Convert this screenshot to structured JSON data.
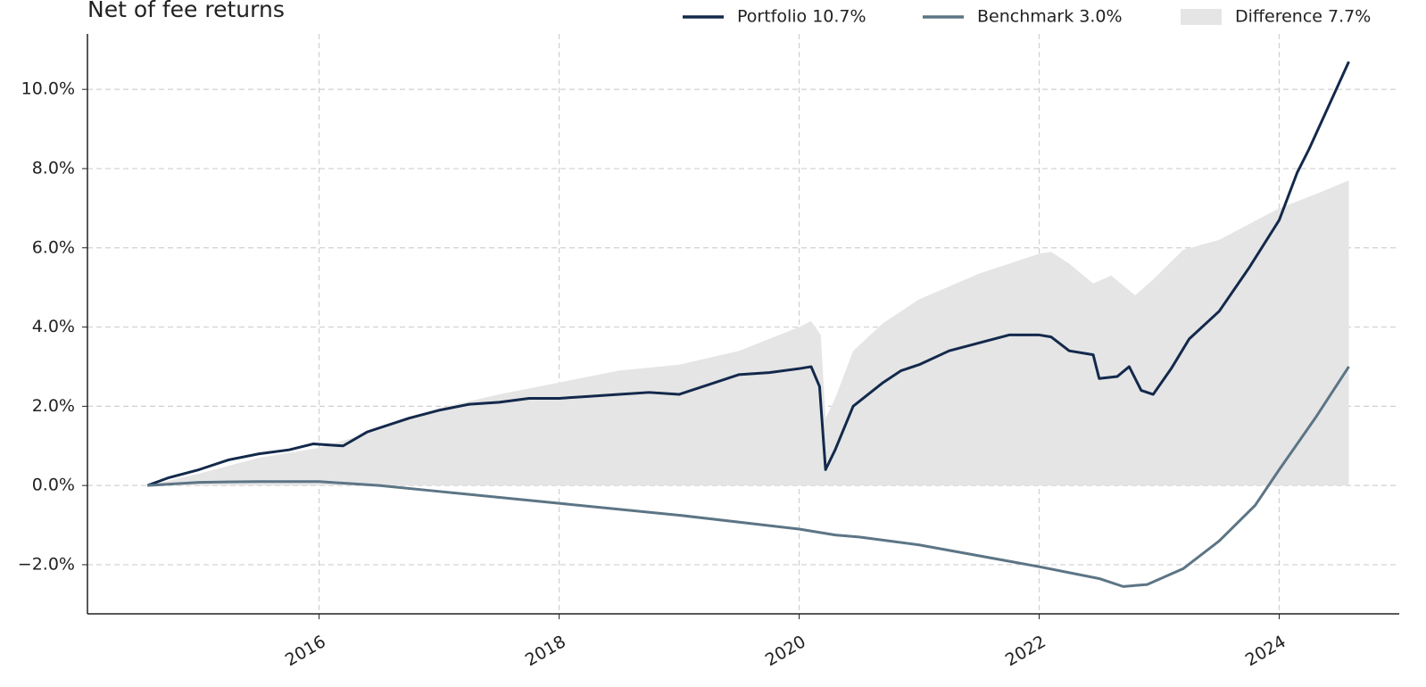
{
  "chart_data": {
    "type": "line",
    "title": "Net of fee returns",
    "xlim": [
      2014.07,
      2025.0
    ],
    "xticks": [
      2016,
      2018,
      2020,
      2022,
      2024
    ],
    "ylim": [
      -3.24,
      11.4
    ],
    "yticks": [
      {
        "value": -2,
        "label": "−2.0%"
      },
      {
        "value": 0,
        "label": "0.0%"
      },
      {
        "value": 2,
        "label": "2.0%"
      },
      {
        "value": 4,
        "label": "4.0%"
      },
      {
        "value": 6,
        "label": "6.0%"
      },
      {
        "value": 8,
        "label": "8.0%"
      },
      {
        "value": 10,
        "label": "10.0%"
      }
    ],
    "grid": true,
    "legend": "top-right",
    "series": [
      {
        "name": "Difference 7.7%",
        "color": "#e5e5e5",
        "style": "area",
        "x": [
          2014.57,
          2015,
          2015.5,
          2016,
          2016.5,
          2017,
          2017.5,
          2018,
          2018.5,
          2019,
          2019.5,
          2020,
          2020.1,
          2020.18,
          2020.22,
          2020.3,
          2020.45,
          2020.7,
          2021,
          2021.5,
          2022,
          2022.1,
          2022.25,
          2022.45,
          2022.6,
          2022.8,
          2022.95,
          2023.2,
          2023.5,
          2024,
          2024.3,
          2024.58
        ],
        "values": [
          0,
          0.3,
          0.7,
          0.95,
          1.4,
          1.95,
          2.3,
          2.6,
          2.9,
          3.05,
          3.4,
          4.0,
          4.15,
          3.8,
          1.7,
          2.2,
          3.4,
          4.1,
          4.7,
          5.35,
          5.85,
          5.9,
          5.6,
          5.1,
          5.3,
          4.8,
          5.2,
          5.95,
          6.2,
          7.0,
          7.35,
          7.7
        ]
      },
      {
        "name": "Portfolio 10.7%",
        "color": "#13294b",
        "style": "line",
        "x": [
          2014.57,
          2014.75,
          2015,
          2015.25,
          2015.5,
          2015.75,
          2015.95,
          2016.2,
          2016.4,
          2016.75,
          2017,
          2017.25,
          2017.5,
          2017.75,
          2018,
          2018.25,
          2018.5,
          2018.75,
          2019,
          2019.25,
          2019.5,
          2019.75,
          2020,
          2020.1,
          2020.17,
          2020.22,
          2020.3,
          2020.45,
          2020.7,
          2020.85,
          2021,
          2021.25,
          2021.5,
          2021.75,
          2022,
          2022.1,
          2022.25,
          2022.45,
          2022.5,
          2022.65,
          2022.75,
          2022.85,
          2022.95,
          2023.1,
          2023.25,
          2023.5,
          2023.75,
          2024,
          2024.15,
          2024.25,
          2024.4,
          2024.58
        ],
        "values": [
          0,
          0.2,
          0.4,
          0.65,
          0.8,
          0.9,
          1.05,
          1.0,
          1.35,
          1.7,
          1.9,
          2.05,
          2.1,
          2.2,
          2.2,
          2.25,
          2.3,
          2.35,
          2.3,
          2.55,
          2.8,
          2.85,
          2.95,
          3.0,
          2.5,
          0.4,
          0.9,
          2.0,
          2.6,
          2.9,
          3.05,
          3.4,
          3.6,
          3.8,
          3.8,
          3.75,
          3.4,
          3.3,
          2.7,
          2.75,
          3.0,
          2.4,
          2.3,
          2.95,
          3.7,
          4.4,
          5.5,
          6.7,
          7.9,
          8.5,
          9.5,
          10.7
        ]
      },
      {
        "name": "Benchmark 3.0%",
        "color": "#5c7585",
        "style": "line",
        "x": [
          2014.57,
          2015,
          2015.5,
          2016,
          2016.5,
          2017,
          2018,
          2019,
          2020,
          2020.3,
          2020.5,
          2021,
          2022,
          2022.5,
          2022.7,
          2022.9,
          2023.2,
          2023.5,
          2023.8,
          2024,
          2024.3,
          2024.58
        ],
        "values": [
          0,
          0.08,
          0.1,
          0.1,
          0.0,
          -0.15,
          -0.45,
          -0.75,
          -1.1,
          -1.25,
          -1.3,
          -1.5,
          -2.05,
          -2.35,
          -2.55,
          -2.5,
          -2.1,
          -1.4,
          -0.5,
          0.4,
          1.7,
          3.0
        ]
      }
    ]
  }
}
